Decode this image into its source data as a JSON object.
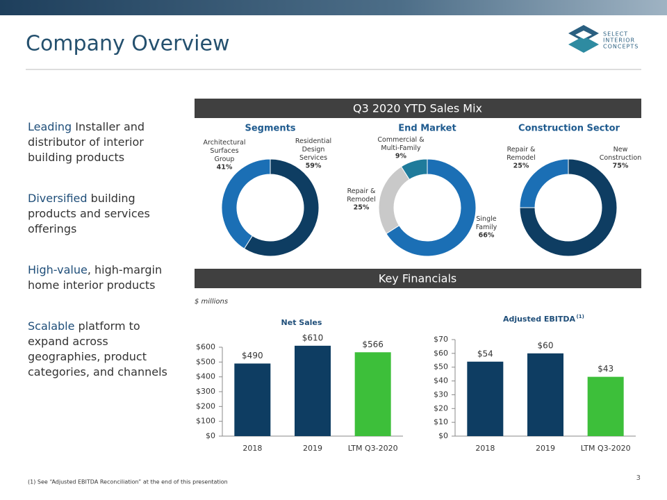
{
  "header": {
    "title": "Company Overview"
  },
  "logo": {
    "lines": [
      "SELECT",
      "INTERIOR",
      "CONCEPTS"
    ]
  },
  "bullets": [
    {
      "lead": "Leading",
      "text": " Installer and distributor of interior building products"
    },
    {
      "lead": "Diversified",
      "text": " building products and services offerings"
    },
    {
      "lead": "High-value",
      "text": ", high-margin home interior products"
    },
    {
      "lead": "Scalable",
      "text": " platform to expand across geographies, product categories, and channels"
    }
  ],
  "sections": [
    "Q3 2020 YTD Sales Mix",
    "Key Financials"
  ],
  "units_note": "$ millions",
  "chart_data": [
    {
      "type": "donut",
      "title": "Segments",
      "categories": [
        "Residential\nDesign\nServices",
        "Architectural\nSurfaces\nGroup"
      ],
      "values": [
        59,
        41
      ],
      "value_labels": [
        "59%",
        "41%"
      ],
      "colors": [
        "#0e3d62",
        "#1b6fb5"
      ]
    },
    {
      "type": "donut",
      "title": "End Market",
      "categories": [
        "Single\nFamily",
        "Repair &\nRemodel",
        "Commercial &\nMulti-Family"
      ],
      "values": [
        66,
        25,
        9
      ],
      "value_labels": [
        "66%",
        "25%",
        "9%"
      ],
      "colors": [
        "#1b6fb5",
        "#c9c9c9",
        "#1f7b9b"
      ]
    },
    {
      "type": "donut",
      "title": "Construction Sector",
      "categories": [
        "New\nConstruction",
        "Repair &\nRemodel"
      ],
      "values": [
        75,
        25
      ],
      "value_labels": [
        "75%",
        "25%"
      ],
      "colors": [
        "#0e3d62",
        "#1b6fb5"
      ]
    },
    {
      "type": "bar",
      "title": "Net Sales",
      "categories": [
        "2018",
        "2019",
        "LTM Q3-2020"
      ],
      "values": [
        490,
        610,
        566
      ],
      "value_labels": [
        "$490",
        "$610",
        "$566"
      ],
      "colors": [
        "#0e3d62",
        "#0e3d62",
        "#3dbf3a"
      ],
      "ylim": [
        0,
        600
      ],
      "yticks": [
        {
          "value": 0,
          "label": "$0"
        },
        {
          "value": 100,
          "label": "$100"
        },
        {
          "value": 200,
          "label": "$200"
        },
        {
          "value": 300,
          "label": "$300"
        },
        {
          "value": 400,
          "label": "$400"
        },
        {
          "value": 500,
          "label": "$500"
        },
        {
          "value": 600,
          "label": "$600"
        }
      ]
    },
    {
      "type": "bar",
      "title": "Adjusted EBITDA",
      "title_note": "(1)",
      "categories": [
        "2018",
        "2019",
        "LTM Q3-2020"
      ],
      "values": [
        54,
        60,
        43
      ],
      "value_labels": [
        "$54",
        "$60",
        "$43"
      ],
      "colors": [
        "#0e3d62",
        "#0e3d62",
        "#3dbf3a"
      ],
      "ylim": [
        0,
        70
      ],
      "yticks": [
        {
          "value": 0,
          "label": "$0"
        },
        {
          "value": 10,
          "label": "$10"
        },
        {
          "value": 20,
          "label": "$20"
        },
        {
          "value": 30,
          "label": "$30"
        },
        {
          "value": 40,
          "label": "$40"
        },
        {
          "value": 50,
          "label": "$50"
        },
        {
          "value": 60,
          "label": "$60"
        },
        {
          "value": 70,
          "label": "$70"
        }
      ]
    }
  ],
  "footnote": "(1) See “Adjusted EBITDA Reconciliation” at the end of this presentation",
  "page_number": "3"
}
